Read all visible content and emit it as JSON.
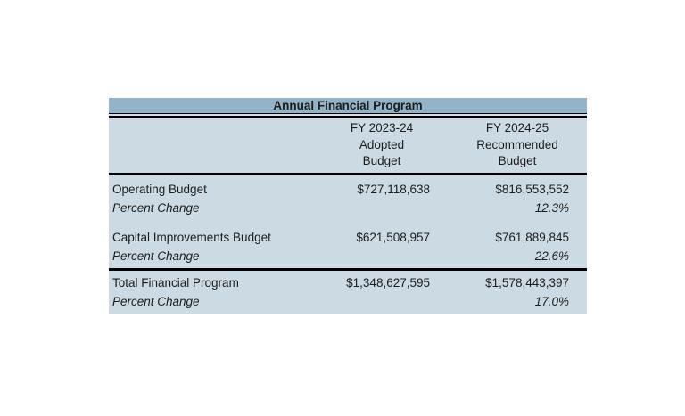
{
  "table": {
    "title": "Annual Financial Program",
    "column_headers": [
      {
        "lines": [
          "FY 2023-24",
          "Adopted",
          "Budget"
        ]
      },
      {
        "lines": [
          "FY 2024-25",
          "Recommended",
          "Budget"
        ]
      }
    ],
    "body": {
      "rows": [
        {
          "label": "Operating Budget",
          "fy2023_24": "$727,118,638",
          "fy2024_25": "$816,553,552"
        },
        {
          "label": "Percent Change",
          "fy2023_24": "",
          "fy2024_25": "12.3%"
        },
        {
          "label": "Capital Improvements Budget",
          "fy2023_24": "$621,508,957",
          "fy2024_25": "$761,889,845"
        },
        {
          "label": "Percent Change",
          "fy2023_24": "",
          "fy2024_25": "22.6%"
        }
      ]
    },
    "totals": {
      "rows": [
        {
          "label": "Total Financial Program",
          "fy2023_24": "$1,348,627,595",
          "fy2024_25": "$1,578,443,397"
        },
        {
          "label": "Percent Change",
          "fy2023_24": "",
          "fy2024_25": "17.0%"
        }
      ]
    },
    "colors": {
      "title_bar_bg": "#92b4c6",
      "body_bg": "#ccdbe3",
      "border": "#000000",
      "text": "#1c1c1c"
    }
  }
}
